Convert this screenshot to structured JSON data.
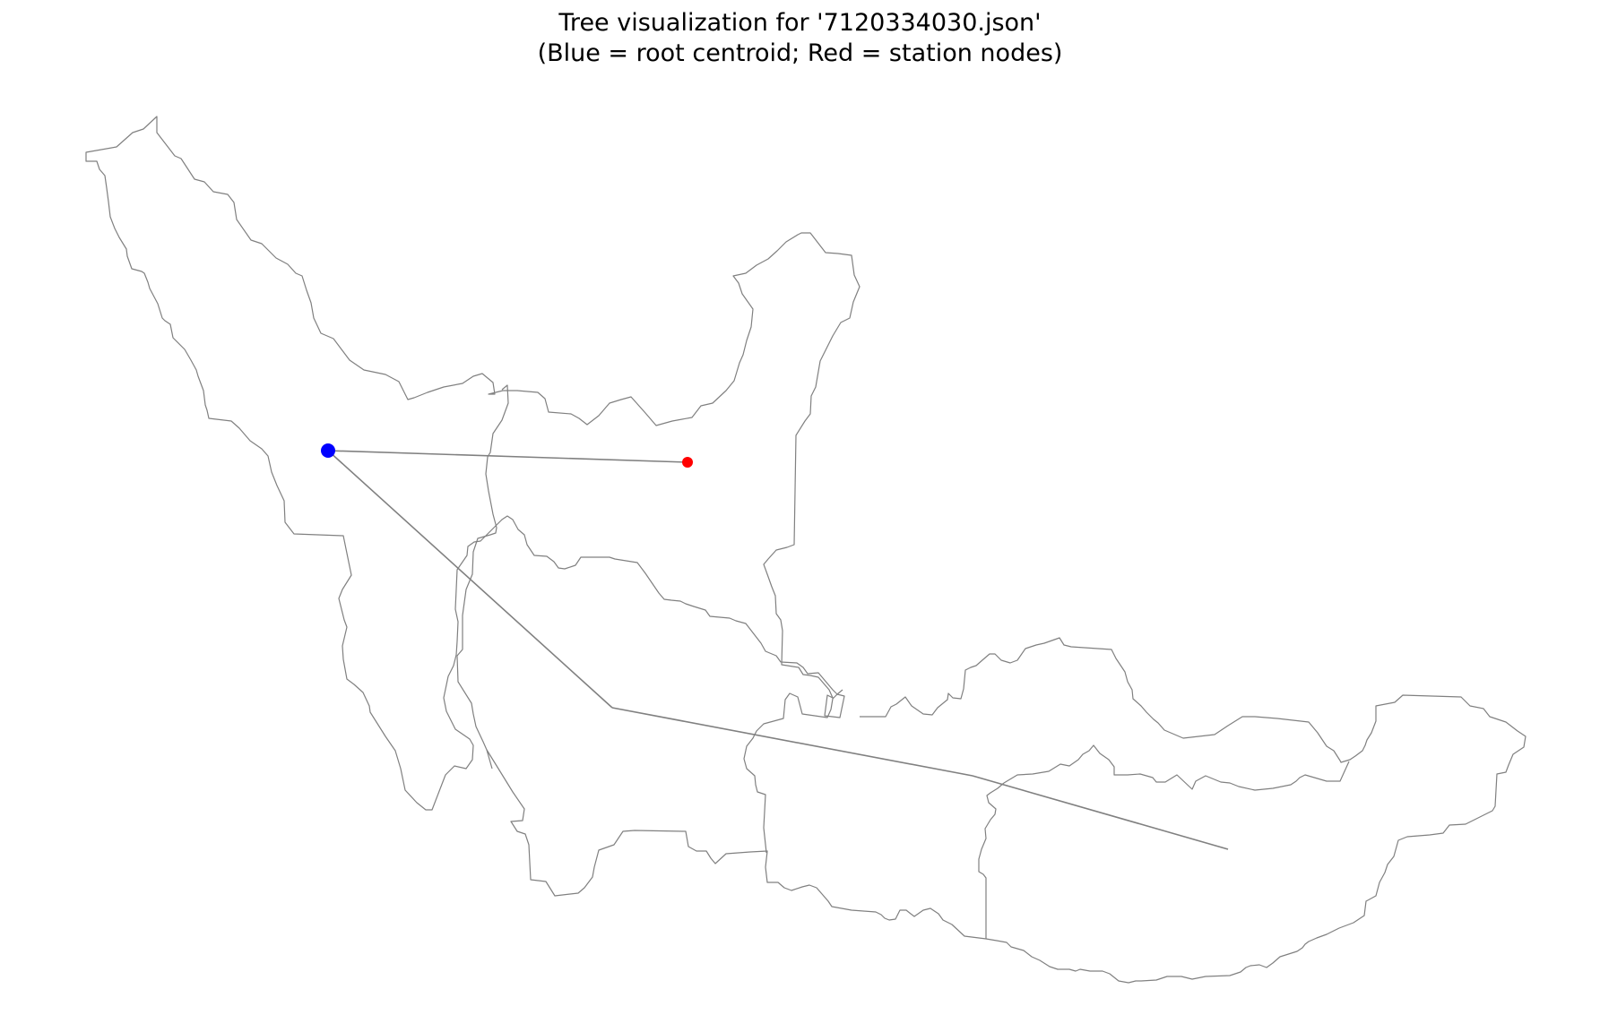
{
  "title": {
    "line1": "Tree visualization for '7120334030.json'",
    "line2": "(Blue = root centroid; Red = station nodes)"
  },
  "colors": {
    "background": "#ffffff",
    "boundary_stroke": "#808080",
    "edge_stroke": "#808080",
    "root_node": "#0000ff",
    "station_node": "#ff0000"
  },
  "legend_semantics": {
    "root": "root centroid",
    "station": "station nodes"
  }
}
